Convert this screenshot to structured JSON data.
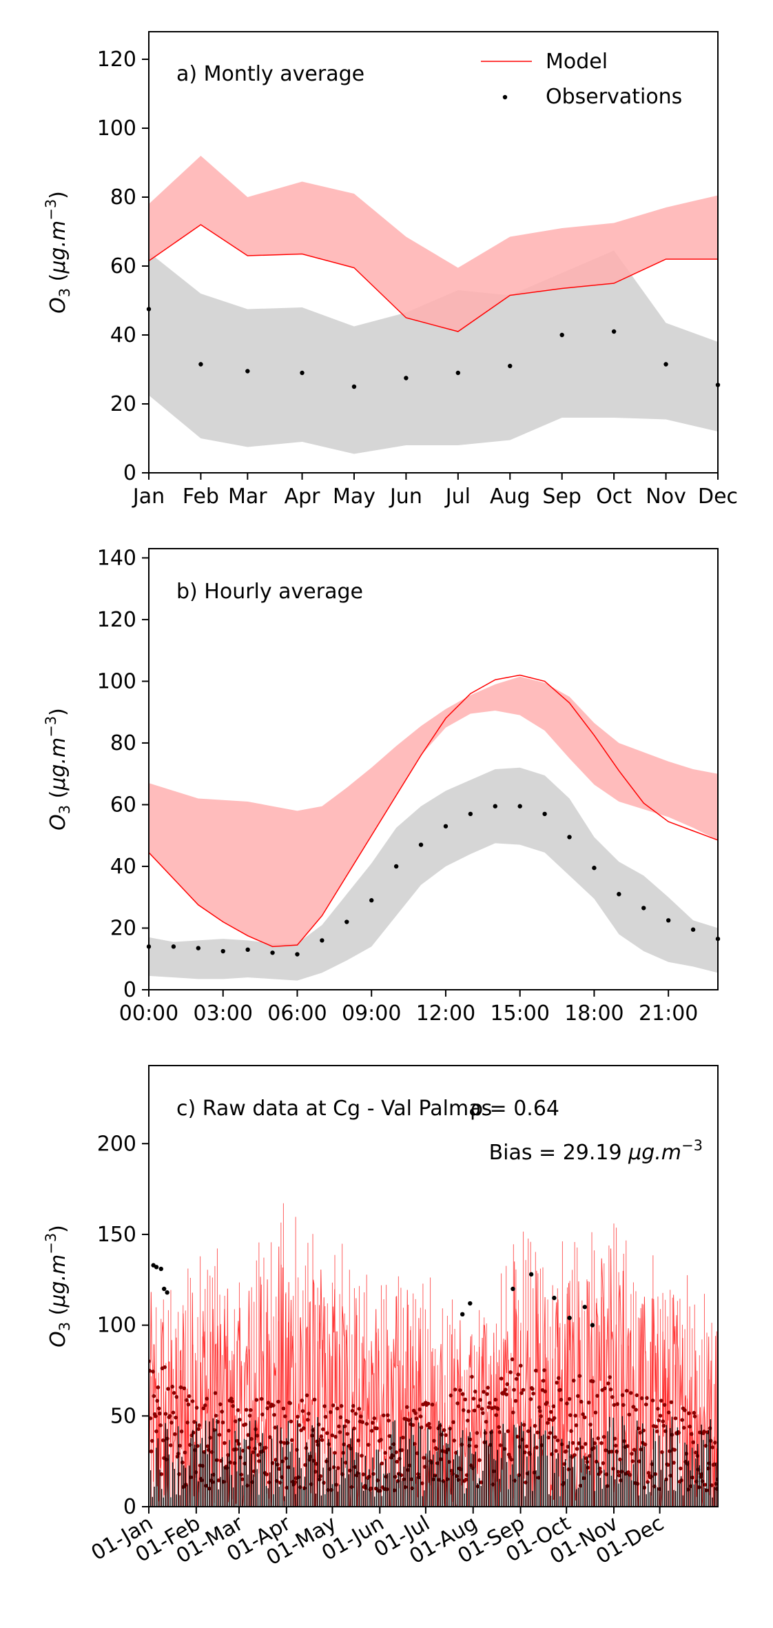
{
  "colors": {
    "model_line": "#ff0000",
    "model_band": "#ffb0b0",
    "obs_band": "#d6d6d6",
    "obs_point": "#000000",
    "raw_model": "#ff1a1a",
    "raw_obs_dark": "#8b0000"
  },
  "legend": {
    "model": "Model",
    "observations": "Observations",
    "placement": "top-right"
  },
  "chart_data": [
    {
      "type": "line",
      "title": "a) Montly average",
      "ylabel": "O3 (μg.m−3)",
      "ylim": [
        0,
        128
      ],
      "yticks": [
        0,
        20,
        40,
        60,
        80,
        100,
        120
      ],
      "categories": [
        "Jan",
        "Feb",
        "Mar",
        "Apr",
        "May",
        "Jun",
        "Jul",
        "Aug",
        "Sep",
        "Oct",
        "Nov",
        "Dec"
      ],
      "x": [
        1,
        2,
        2.9,
        3.95,
        4.95,
        5.95,
        6.95,
        7.95,
        8.95,
        9.95,
        10.95,
        11.95
      ],
      "model": [
        61.5,
        72,
        63,
        63.5,
        59.5,
        45,
        41,
        51.5,
        53.5,
        55,
        62,
        62
      ],
      "model_band_low": [
        61.5,
        72,
        63,
        63.5,
        59.5,
        45,
        41,
        51.5,
        53.5,
        55,
        62,
        62
      ],
      "model_band_high": [
        78,
        92,
        80,
        84.5,
        81,
        68.5,
        59.5,
        68.5,
        71,
        72.5,
        77,
        80.5
      ],
      "obs": [
        47.5,
        31.5,
        29.5,
        29,
        25,
        27.5,
        29,
        31,
        40,
        41,
        31.5,
        25.5
      ],
      "obs_band_low": [
        22.5,
        10,
        7.5,
        9,
        5.5,
        8,
        8,
        9.5,
        16,
        16,
        15.5,
        12
      ],
      "obs_band_high": [
        64,
        52,
        47.5,
        48,
        42.5,
        46.5,
        53,
        51.5,
        58,
        64.5,
        43.5,
        38
      ],
      "grid": false
    },
    {
      "type": "line",
      "title": "b) Hourly average",
      "ylabel": "O3 (μg.m−3)",
      "ylim": [
        0,
        143
      ],
      "yticks": [
        0,
        20,
        40,
        60,
        80,
        100,
        120,
        140
      ],
      "xtick_labels": [
        "00:00",
        "03:00",
        "06:00",
        "09:00",
        "12:00",
        "15:00",
        "18:00",
        "21:00"
      ],
      "xtick_values": [
        0,
        3,
        6,
        9,
        12,
        15,
        18,
        21
      ],
      "xlim": [
        0,
        23
      ],
      "hours": [
        0,
        1,
        2,
        3,
        4,
        5,
        6,
        7,
        8,
        9,
        10,
        11,
        12,
        13,
        14,
        15,
        16,
        17,
        18,
        19,
        20,
        21,
        22,
        23
      ],
      "model": [
        44.5,
        36,
        27.5,
        22,
        17.5,
        14,
        14.5,
        24,
        37,
        50,
        63,
        76,
        88,
        96,
        100.5,
        102,
        100,
        93,
        82.5,
        71,
        60.5,
        54.5,
        51.5,
        48.5
      ],
      "model_band_high": [
        67,
        64.5,
        62,
        61.5,
        61,
        59.5,
        58,
        59.5,
        65.5,
        72,
        79,
        85.5,
        91,
        95.5,
        99,
        101.5,
        99.5,
        95,
        86.5,
        80,
        77,
        74,
        71.5,
        70
      ],
      "model_band_low": [
        44.5,
        36,
        27.5,
        22,
        17.5,
        14,
        14.5,
        24,
        37,
        50,
        63,
        76,
        85,
        89.5,
        90.5,
        89,
        84,
        75,
        66.5,
        61,
        58.5,
        56,
        52.5,
        48.5
      ],
      "obs": [
        14,
        14,
        13.5,
        12.5,
        13,
        12,
        11.5,
        16,
        22,
        29,
        40,
        47,
        53,
        57,
        59.5,
        59.5,
        57,
        49.5,
        39.5,
        31,
        26.5,
        22.5,
        19.5,
        16.5
      ],
      "obs_band_high": [
        17,
        15.5,
        16,
        16.5,
        16,
        15,
        15,
        21,
        31,
        41,
        52.5,
        59.5,
        64.5,
        68,
        71.5,
        72,
        69.5,
        62,
        49.5,
        41.5,
        37,
        30,
        22.5,
        20
      ],
      "obs_band_low": [
        4.5,
        4,
        3.5,
        3.5,
        4,
        3.5,
        3,
        5.5,
        9.5,
        14,
        24,
        34,
        40,
        44,
        47.5,
        47,
        44.5,
        37,
        29.5,
        18,
        12.5,
        9,
        7.5,
        5.5
      ],
      "grid": false
    },
    {
      "type": "line",
      "title": "c) Raw data at Cg - Val Palmas",
      "annotation_r": "ρ = 0.64",
      "annotation_bias": "Bias = 29.19 μg.m−3",
      "ylabel": "O3 (μg.m−3)",
      "ylim": [
        0,
        243
      ],
      "yticks": [
        0,
        50,
        100,
        150,
        200
      ],
      "xtick_labels": [
        "01-Jan",
        "01-Feb",
        "01-Mar",
        "01-Apr",
        "01-May",
        "01-Jun",
        "01-Jul",
        "01-Aug",
        "01-Sep",
        "01-Oct",
        "01-Nov",
        "01-Dec"
      ],
      "xtick_values": [
        0,
        31,
        59,
        90,
        120,
        151,
        181,
        212,
        243,
        273,
        304,
        334
      ],
      "xlim": [
        0,
        372
      ],
      "model_envelope_days": [
        0,
        15,
        30,
        45,
        60,
        75,
        90,
        105,
        120,
        135,
        150,
        165,
        180,
        195,
        210,
        225,
        240,
        255,
        270,
        285,
        300,
        315,
        330,
        345,
        360,
        372
      ],
      "model_envelope_max": [
        130,
        125,
        148,
        150,
        140,
        160,
        176,
        155,
        145,
        148,
        125,
        130,
        135,
        118,
        120,
        125,
        155,
        145,
        150,
        150,
        162,
        148,
        140,
        135,
        130,
        120
      ],
      "obs_envelope_max": [
        133,
        120,
        95,
        100,
        90,
        95,
        90,
        100,
        88,
        92,
        80,
        85,
        88,
        95,
        110,
        112,
        128,
        115,
        120,
        110,
        112,
        108,
        92,
        88,
        80,
        60
      ],
      "grid": false
    }
  ]
}
